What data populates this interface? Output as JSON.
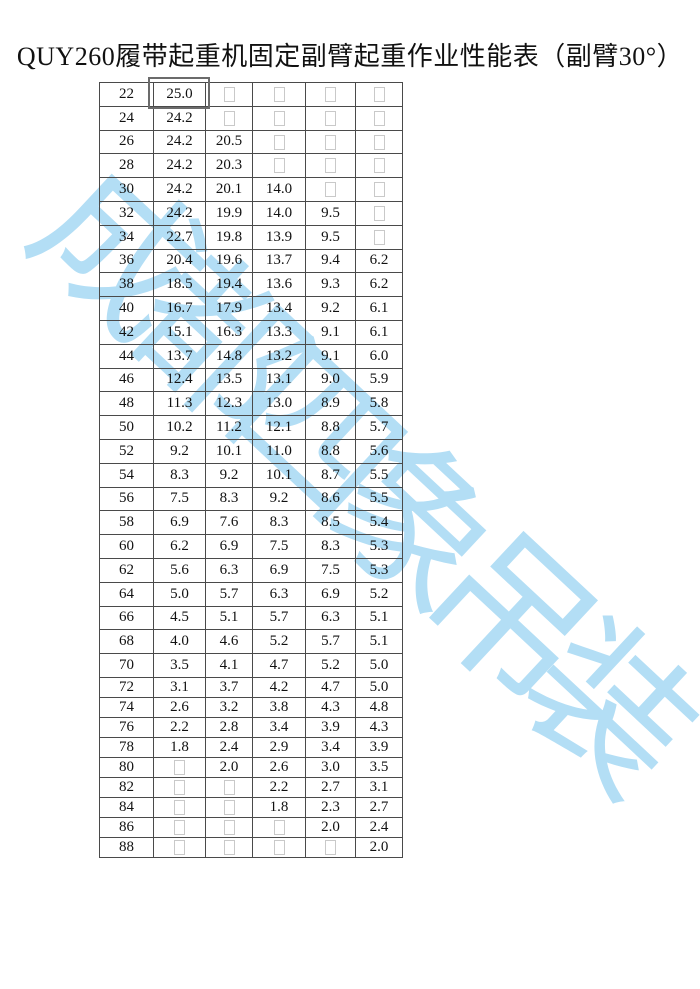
{
  "title": "QUY260履带起重机固定副臂起重作业性能表（副臂30°）",
  "watermark": {
    "text": "成都四象吊装",
    "color": "#b3def5"
  },
  "colors": {
    "border": "#4a4a4a",
    "text": "#111111",
    "empty_marker_gray": "#c9c9c9",
    "highlight_frame": "#6b6b6b",
    "watermark_blue": "#b3def5"
  },
  "table": {
    "empty_marker": "□",
    "highlighted_cell": {
      "row_label": "22",
      "value": "25.0"
    },
    "rows": [
      [
        "22",
        "25.0",
        "",
        "",
        "",
        ""
      ],
      [
        "24",
        "24.2",
        "",
        "",
        "",
        ""
      ],
      [
        "26",
        "24.2",
        "20.5",
        "",
        "",
        ""
      ],
      [
        "28",
        "24.2",
        "20.3",
        "",
        "",
        ""
      ],
      [
        "30",
        "24.2",
        "20.1",
        "14.0",
        "",
        ""
      ],
      [
        "32",
        "24.2",
        "19.9",
        "14.0",
        "9.5",
        ""
      ],
      [
        "34",
        "22.7",
        "19.8",
        "13.9",
        "9.5",
        ""
      ],
      [
        "36",
        "20.4",
        "19.6",
        "13.7",
        "9.4",
        "6.2"
      ],
      [
        "38",
        "18.5",
        "19.4",
        "13.6",
        "9.3",
        "6.2"
      ],
      [
        "40",
        "16.7",
        "17.9",
        "13.4",
        "9.2",
        "6.1"
      ],
      [
        "42",
        "15.1",
        "16.3",
        "13.3",
        "9.1",
        "6.1"
      ],
      [
        "44",
        "13.7",
        "14.8",
        "13.2",
        "9.1",
        "6.0"
      ],
      [
        "46",
        "12.4",
        "13.5",
        "13.1",
        "9.0",
        "5.9"
      ],
      [
        "48",
        "11.3",
        "12.3",
        "13.0",
        "8.9",
        "5.8"
      ],
      [
        "50",
        "10.2",
        "11.2",
        "12.1",
        "8.8",
        "5.7"
      ],
      [
        "52",
        "9.2",
        "10.1",
        "11.0",
        "8.8",
        "5.6"
      ],
      [
        "54",
        "8.3",
        "9.2",
        "10.1",
        "8.7",
        "5.5"
      ],
      [
        "56",
        "7.5",
        "8.3",
        "9.2",
        "8.6",
        "5.5"
      ],
      [
        "58",
        "6.9",
        "7.6",
        "8.3",
        "8.5",
        "5.4"
      ],
      [
        "60",
        "6.2",
        "6.9",
        "7.5",
        "8.3",
        "5.3"
      ],
      [
        "62",
        "5.6",
        "6.3",
        "6.9",
        "7.5",
        "5.3"
      ],
      [
        "64",
        "5.0",
        "5.7",
        "6.3",
        "6.9",
        "5.2"
      ],
      [
        "66",
        "4.5",
        "5.1",
        "5.7",
        "6.3",
        "5.1"
      ],
      [
        "68",
        "4.0",
        "4.6",
        "5.2",
        "5.7",
        "5.1"
      ],
      [
        "70",
        "3.5",
        "4.1",
        "4.7",
        "5.2",
        "5.0"
      ],
      [
        "72",
        "3.1",
        "3.7",
        "4.2",
        "4.7",
        "5.0"
      ],
      [
        "74",
        "2.6",
        "3.2",
        "3.8",
        "4.3",
        "4.8"
      ],
      [
        "76",
        "2.2",
        "2.8",
        "3.4",
        "3.9",
        "4.3"
      ],
      [
        "78",
        "1.8",
        "2.4",
        "2.9",
        "3.4",
        "3.9"
      ],
      [
        "80",
        "",
        "2.0",
        "2.6",
        "3.0",
        "3.5"
      ],
      [
        "82",
        "",
        "",
        "2.2",
        "2.7",
        "3.1"
      ],
      [
        "84",
        "",
        "",
        "1.8",
        "2.3",
        "2.7"
      ],
      [
        "86",
        "",
        "",
        "",
        "2.0",
        "2.4"
      ],
      [
        "88",
        "",
        "",
        "",
        "",
        "2.0"
      ]
    ]
  }
}
